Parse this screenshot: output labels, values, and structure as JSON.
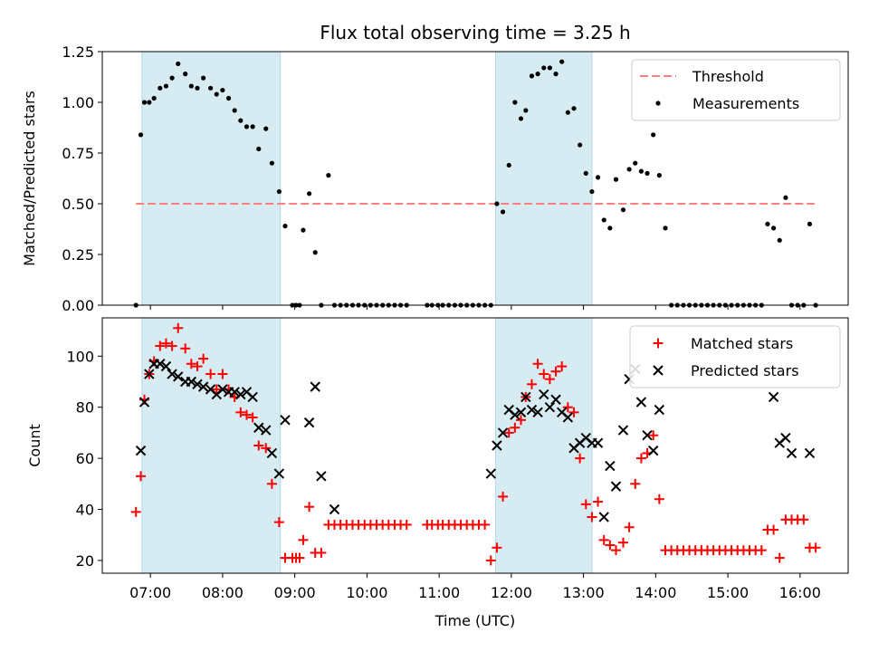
{
  "chart_data": [
    {
      "type": "scatter",
      "title": "Flux total observing time = 3.25 h",
      "xlabel": "",
      "ylabel": "Matched/Predicted stars",
      "ylim": [
        0,
        1.25
      ],
      "xlim": [
        "06:20",
        "16:40"
      ],
      "yticks": [
        "0.00",
        "0.25",
        "0.50",
        "0.75",
        "1.00",
        "1.25"
      ],
      "grid": false,
      "legend_position": "top-right",
      "observing_windows": [
        [
          "06:53",
          "08:48"
        ],
        [
          "11:47",
          "13:07"
        ]
      ],
      "threshold": {
        "name": "Threshold",
        "value": 0.5,
        "color": "#ff7f7f",
        "style": "dashed",
        "x_range": [
          "06:48",
          "16:12"
        ]
      },
      "series": [
        {
          "name": "Measurements",
          "color": "#000000",
          "x": [
            "06:48",
            "06:52",
            "06:55",
            "06:59",
            "07:03",
            "07:08",
            "07:13",
            "07:18",
            "07:23",
            "07:29",
            "07:34",
            "07:39",
            "07:44",
            "07:50",
            "07:55",
            "08:00",
            "08:05",
            "08:10",
            "08:15",
            "08:20",
            "08:25",
            "08:30",
            "08:36",
            "08:41",
            "08:47",
            "08:52",
            "08:58",
            "09:01",
            "09:04",
            "09:07",
            "09:12",
            "09:17",
            "09:22",
            "09:28",
            "09:33",
            "09:38",
            "09:43",
            "09:48",
            "09:53",
            "09:58",
            "10:03",
            "10:08",
            "10:13",
            "10:18",
            "10:23",
            "10:28",
            "10:33",
            "10:50",
            "10:54",
            "10:59",
            "11:03",
            "11:08",
            "11:13",
            "11:18",
            "11:23",
            "11:28",
            "11:33",
            "11:38",
            "11:43",
            "11:48",
            "11:53",
            "11:58",
            "12:03",
            "12:08",
            "12:12",
            "12:17",
            "12:22",
            "12:27",
            "12:32",
            "12:37",
            "12:42",
            "12:47",
            "12:52",
            "12:57",
            "13:02",
            "13:07",
            "13:12",
            "13:17",
            "13:22",
            "13:27",
            "13:33",
            "13:38",
            "13:43",
            "13:48",
            "13:53",
            "13:58",
            "14:03",
            "14:08",
            "14:13",
            "14:18",
            "14:23",
            "14:28",
            "14:33",
            "14:38",
            "14:43",
            "14:48",
            "14:53",
            "14:58",
            "15:03",
            "15:08",
            "15:13",
            "15:18",
            "15:23",
            "15:28",
            "15:33",
            "15:38",
            "15:43",
            "15:48",
            "15:53",
            "15:58",
            "16:03",
            "16:08",
            "16:13"
          ],
          "y": [
            0.0,
            0.84,
            1.0,
            1.0,
            1.02,
            1.07,
            1.08,
            1.12,
            1.19,
            1.14,
            1.08,
            1.07,
            1.12,
            1.07,
            1.04,
            1.06,
            1.02,
            0.96,
            0.91,
            0.88,
            0.88,
            0.77,
            0.87,
            0.7,
            0.56,
            0.39,
            0.0,
            0.0,
            0.0,
            0.37,
            0.55,
            0.26,
            0.0,
            0.64,
            0.0,
            0.0,
            0.0,
            0.0,
            0.0,
            0.0,
            0.0,
            0.0,
            0.0,
            0.0,
            0.0,
            0.0,
            0.0,
            0.0,
            0.0,
            0.0,
            0.0,
            0.0,
            0.0,
            0.0,
            0.0,
            0.0,
            0.0,
            0.0,
            0.0,
            0.5,
            0.46,
            0.69,
            1.0,
            0.92,
            0.96,
            1.13,
            1.14,
            1.17,
            1.17,
            1.14,
            1.2,
            0.95,
            0.97,
            0.79,
            0.65,
            0.56,
            0.63,
            0.42,
            0.38,
            0.62,
            0.47,
            0.67,
            0.7,
            0.66,
            0.65,
            0.84,
            0.64,
            0.38,
            0.0,
            0.0,
            0.0,
            0.0,
            0.0,
            0.0,
            0.0,
            0.0,
            0.0,
            0.0,
            0.0,
            0.0,
            0.0,
            0.0,
            0.0,
            0.0,
            0.4,
            0.38,
            0.32,
            0.53,
            0.0,
            0.0,
            0.0,
            0.4,
            0.0
          ]
        }
      ]
    },
    {
      "type": "scatter",
      "title": "",
      "xlabel": "Time (UTC)",
      "ylabel": "Count",
      "ylim": [
        15,
        115
      ],
      "xlim": [
        "06:20",
        "16:40"
      ],
      "yticks": [
        "20",
        "40",
        "60",
        "80",
        "100"
      ],
      "xticks": [
        "07:00",
        "08:00",
        "09:00",
        "10:00",
        "11:00",
        "12:00",
        "13:00",
        "14:00",
        "15:00",
        "16:00"
      ],
      "grid": false,
      "legend_position": "top-right",
      "observing_windows": [
        [
          "06:53",
          "08:48"
        ],
        [
          "11:47",
          "13:07"
        ]
      ],
      "series": [
        {
          "name": "Matched stars",
          "marker": "plus",
          "color": "#ff0000",
          "x": [
            "06:48",
            "06:52",
            "06:55",
            "06:59",
            "07:03",
            "07:08",
            "07:13",
            "07:18",
            "07:23",
            "07:29",
            "07:34",
            "07:39",
            "07:44",
            "07:50",
            "07:55",
            "08:00",
            "08:05",
            "08:10",
            "08:15",
            "08:20",
            "08:25",
            "08:30",
            "08:36",
            "08:41",
            "08:47",
            "08:52",
            "08:58",
            "09:01",
            "09:04",
            "09:07",
            "09:12",
            "09:17",
            "09:22",
            "09:28",
            "09:33",
            "09:38",
            "09:43",
            "09:48",
            "09:53",
            "09:58",
            "10:03",
            "10:08",
            "10:13",
            "10:18",
            "10:23",
            "10:28",
            "10:33",
            "10:50",
            "10:54",
            "10:59",
            "11:03",
            "11:08",
            "11:13",
            "11:18",
            "11:23",
            "11:28",
            "11:33",
            "11:38",
            "11:43",
            "11:48",
            "11:53",
            "11:58",
            "12:03",
            "12:08",
            "12:12",
            "12:17",
            "12:22",
            "12:27",
            "12:32",
            "12:37",
            "12:42",
            "12:47",
            "12:52",
            "12:57",
            "13:02",
            "13:07",
            "13:12",
            "13:17",
            "13:22",
            "13:27",
            "13:33",
            "13:38",
            "13:43",
            "13:48",
            "13:53",
            "13:58",
            "14:03",
            "14:08",
            "14:13",
            "14:18",
            "14:23",
            "14:28",
            "14:33",
            "14:38",
            "14:43",
            "14:48",
            "14:53",
            "14:58",
            "15:03",
            "15:08",
            "15:13",
            "15:18",
            "15:23",
            "15:28",
            "15:33",
            "15:38",
            "15:43",
            "15:48",
            "15:53",
            "15:58",
            "16:03",
            "16:08",
            "16:13"
          ],
          "y": [
            39,
            53,
            83,
            93,
            98,
            104,
            105,
            104,
            111,
            103,
            97,
            96,
            99,
            93,
            87,
            93,
            87,
            84,
            78,
            77,
            76,
            65,
            64,
            50,
            35,
            21,
            21,
            21,
            21,
            28,
            41,
            23,
            23,
            34,
            34,
            34,
            34,
            34,
            34,
            34,
            34,
            34,
            34,
            34,
            34,
            34,
            34,
            34,
            34,
            34,
            34,
            34,
            34,
            34,
            34,
            34,
            34,
            34,
            20,
            25,
            45,
            70,
            72,
            75,
            84,
            89,
            97,
            93,
            91,
            94,
            96,
            80,
            78,
            60,
            42,
            37,
            43,
            28,
            26,
            24,
            27,
            33,
            50,
            60,
            62,
            69,
            44,
            24,
            24,
            24,
            24,
            24,
            24,
            24,
            24,
            24,
            24,
            24,
            24,
            24,
            24,
            24,
            24,
            24,
            32,
            32,
            21,
            36,
            36,
            36,
            36,
            25,
            25
          ]
        },
        {
          "name": "Predicted stars",
          "marker": "x",
          "color": "#000000",
          "x": [
            "06:52",
            "06:55",
            "06:59",
            "07:03",
            "07:08",
            "07:13",
            "07:18",
            "07:23",
            "07:29",
            "07:34",
            "07:39",
            "07:44",
            "07:50",
            "07:55",
            "08:00",
            "08:05",
            "08:10",
            "08:15",
            "08:20",
            "08:25",
            "08:30",
            "08:36",
            "08:41",
            "08:47",
            "08:52",
            "09:12",
            "09:17",
            "09:22",
            "09:33",
            "11:43",
            "11:48",
            "11:53",
            "11:58",
            "12:03",
            "12:08",
            "12:12",
            "12:17",
            "12:22",
            "12:27",
            "12:32",
            "12:37",
            "12:42",
            "12:47",
            "12:52",
            "12:57",
            "13:02",
            "13:07",
            "13:12",
            "13:17",
            "13:22",
            "13:27",
            "13:33",
            "13:38",
            "13:43",
            "13:48",
            "13:53",
            "13:58",
            "14:03",
            "15:38",
            "15:43",
            "15:48",
            "15:53",
            "16:08"
          ],
          "y": [
            63,
            82,
            93,
            97,
            97,
            96,
            93,
            92,
            90,
            90,
            89,
            88,
            87,
            85,
            87,
            86,
            86,
            85,
            86,
            84,
            72,
            71,
            62,
            54,
            75,
            74,
            88,
            53,
            40,
            54,
            65,
            70,
            79,
            77,
            78,
            84,
            79,
            78,
            85,
            80,
            83,
            78,
            76,
            64,
            66,
            68,
            66,
            66,
            37,
            57,
            49,
            71,
            91,
            95,
            82,
            69,
            63,
            79,
            84,
            66,
            68,
            62,
            62
          ]
        }
      ]
    }
  ]
}
